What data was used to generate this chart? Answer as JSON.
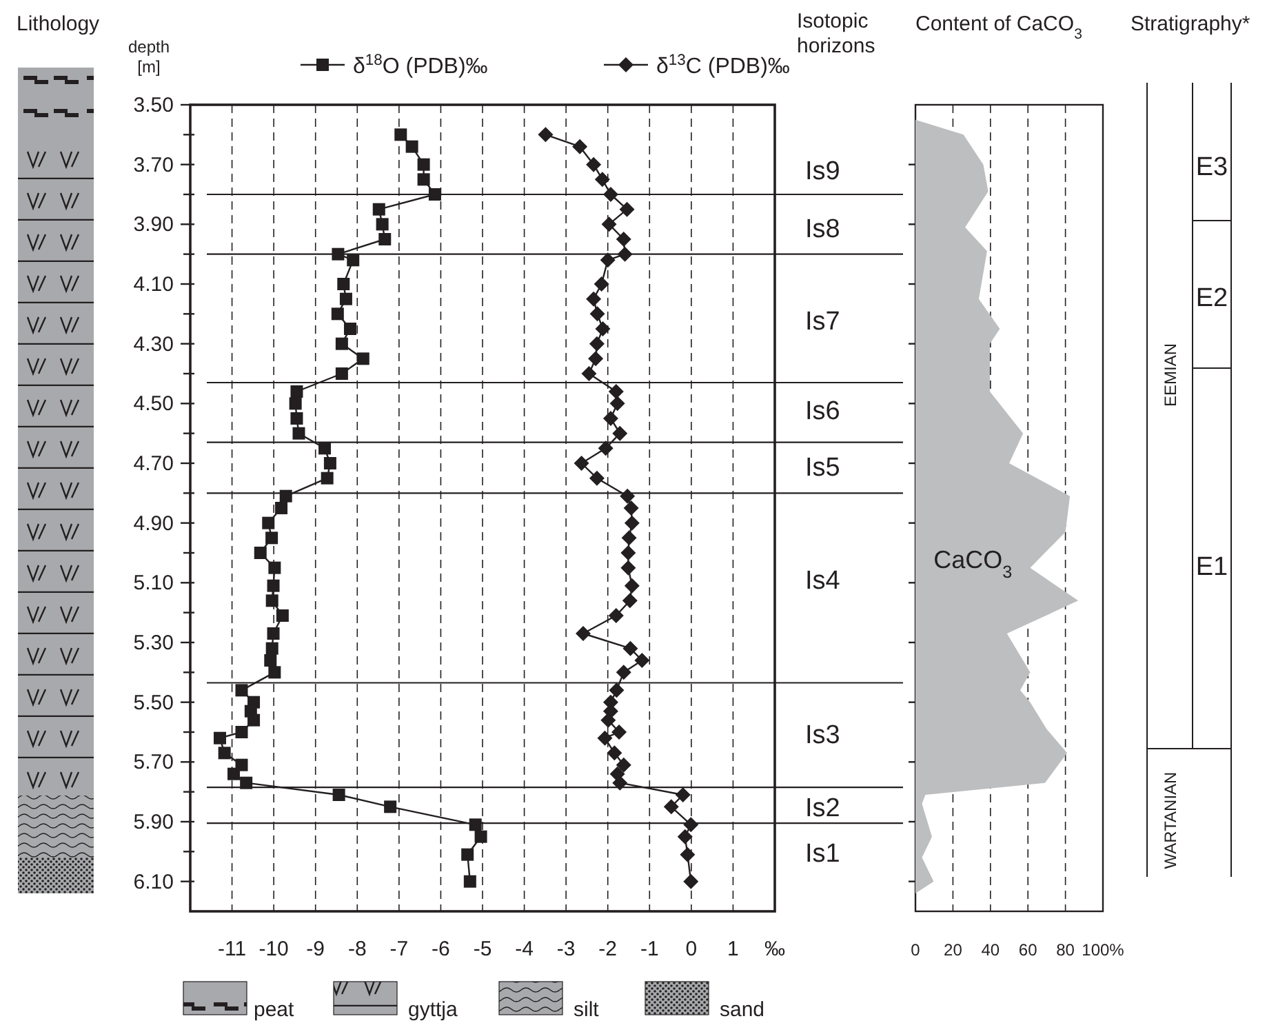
{
  "chart_data": [
    {
      "type": "other",
      "title": "Lithology",
      "annotations": [
        "peat",
        "gyttja",
        "silt",
        "sand"
      ]
    },
    {
      "type": "line",
      "orientation": "horizontal",
      "ylabel": "depth [m]",
      "legend": "top",
      "grid": "x",
      "annotations": [
        "Isotopic horizons",
        "Is9",
        "Is8",
        "Is7",
        "Is6",
        "Is5",
        "Is4",
        "Is3",
        "Is2",
        "Is1"
      ],
      "xlim": [
        -12,
        2
      ],
      "xticks": [
        -11,
        -10,
        -9,
        -8,
        -7,
        -6,
        -5,
        -4,
        -3,
        -2,
        -1,
        0,
        1,
        {
          "value": 2,
          "label": "‰"
        }
      ],
      "ylim": [
        6.2,
        3.5
      ],
      "yticks": [
        {
          "value": 3.5,
          "label": "3.50"
        },
        {
          "value": 3.6,
          "label": null
        },
        {
          "value": 3.7,
          "label": "3.70"
        },
        {
          "value": 3.8,
          "label": null
        },
        {
          "value": 3.9,
          "label": "3.90"
        },
        {
          "value": 4.0,
          "label": null
        },
        {
          "value": 4.1,
          "label": "4.10"
        },
        {
          "value": 4.2,
          "label": null
        },
        {
          "value": 4.3,
          "label": "4.30"
        },
        {
          "value": 4.4,
          "label": null
        },
        {
          "value": 4.5,
          "label": "4.50"
        },
        {
          "value": 4.6,
          "label": null
        },
        {
          "value": 4.7,
          "label": "4.70"
        },
        {
          "value": 4.8,
          "label": null
        },
        {
          "value": 4.9,
          "label": "4.90"
        },
        {
          "value": 5.0,
          "label": null
        },
        {
          "value": 5.1,
          "label": "5.10"
        },
        {
          "value": 5.2,
          "label": null
        },
        {
          "value": 5.3,
          "label": "5.30"
        },
        {
          "value": 5.4,
          "label": null
        },
        {
          "value": 5.5,
          "label": "5.50"
        },
        {
          "value": 5.6,
          "label": null
        },
        {
          "value": 5.7,
          "label": "5.70"
        },
        {
          "value": 5.8,
          "label": null
        },
        {
          "value": 5.9,
          "label": "5.90"
        },
        {
          "value": 6.0,
          "label": null
        },
        {
          "value": 6.1,
          "label": "6.10"
        }
      ],
      "x": [
        3.6,
        3.64,
        3.7,
        3.75,
        3.8,
        3.85,
        3.9,
        3.95,
        4.0,
        4.02,
        4.1,
        4.15,
        4.2,
        4.25,
        4.3,
        4.35,
        4.4,
        4.46,
        4.5,
        4.55,
        4.6,
        4.65,
        4.7,
        4.75,
        4.81,
        4.85,
        4.9,
        4.95,
        5.0,
        5.05,
        5.11,
        5.16,
        5.21,
        5.27,
        5.32,
        5.36,
        5.4,
        5.46,
        5.5,
        5.53,
        5.56,
        5.6,
        5.62,
        5.67,
        5.71,
        5.74,
        5.77,
        5.81,
        5.85,
        5.91,
        5.95,
        6.01,
        6.1
      ],
      "series": [
        {
          "name": "δ$^{18}$O (PDB)‰",
          "color": "#231f20",
          "marker": "square",
          "values": [
            -6.96,
            -6.69,
            -6.41,
            -6.41,
            -6.14,
            -7.48,
            -7.4,
            -7.34,
            -8.46,
            -8.1,
            -8.33,
            -8.27,
            -8.47,
            -8.17,
            -8.37,
            -7.86,
            -8.37,
            -9.45,
            -9.48,
            -9.45,
            -9.4,
            -8.78,
            -8.65,
            -8.72,
            -9.71,
            -9.82,
            -10.13,
            -10.05,
            -10.32,
            -9.98,
            -10.01,
            -10.04,
            -9.79,
            -10.01,
            -10.04,
            -10.08,
            -9.98,
            -10.77,
            -10.48,
            -10.55,
            -10.48,
            -10.77,
            -11.29,
            -11.18,
            -10.77,
            -10.96,
            -10.66,
            -8.44,
            -7.21,
            -5.17,
            -5.04,
            -5.36,
            -5.3
          ]
        },
        {
          "name": "δ$^{13}$C (PDB)‰",
          "color": "#231f20",
          "marker": "diamond",
          "values": [
            -3.49,
            -2.67,
            -2.34,
            -2.13,
            -1.93,
            -1.54,
            -1.97,
            -1.62,
            -1.59,
            -2.0,
            -2.15,
            -2.34,
            -2.25,
            -2.12,
            -2.26,
            -2.29,
            -2.45,
            -1.8,
            -1.77,
            -1.93,
            -1.71,
            -2.05,
            -2.63,
            -2.26,
            -1.53,
            -1.44,
            -1.42,
            -1.49,
            -1.51,
            -1.51,
            -1.42,
            -1.47,
            -1.8,
            -2.59,
            -1.46,
            -1.18,
            -1.62,
            -1.79,
            -1.93,
            -1.93,
            -1.99,
            -1.73,
            -2.07,
            -1.84,
            -1.62,
            -1.77,
            -1.71,
            -0.2,
            -0.48,
            -0.01,
            -0.15,
            -0.09,
            -0.01
          ]
        }
      ],
      "ref_lines": [
        {
          "axis": "y",
          "value": 3.8
        },
        {
          "axis": "y",
          "value": 4.0
        },
        {
          "axis": "y",
          "value": 4.43
        },
        {
          "axis": "y",
          "value": 4.63
        },
        {
          "axis": "y",
          "value": 4.8
        },
        {
          "axis": "y",
          "value": 5.435
        },
        {
          "axis": "y",
          "value": 5.785
        },
        {
          "axis": "y",
          "value": 5.905
        }
      ]
    },
    {
      "type": "area",
      "orientation": "horizontal",
      "title": "Content of CaCO$_{3}$",
      "grid": "x",
      "tick_labels": "x",
      "xlim": [
        0,
        100
      ],
      "xticks": [
        0,
        20,
        40,
        60,
        80,
        {
          "value": 100,
          "label": "100%"
        }
      ],
      "ylim": [
        6.2,
        3.5
      ],
      "yticks": [
        {
          "value": 3.7,
          "label": null
        },
        {
          "value": 3.9,
          "label": null
        },
        {
          "value": 4.1,
          "label": null
        },
        {
          "value": 4.3,
          "label": null
        },
        {
          "value": 4.5,
          "label": null
        },
        {
          "value": 4.7,
          "label": null
        },
        {
          "value": 4.9,
          "label": null
        },
        {
          "value": 5.1,
          "label": null
        },
        {
          "value": 5.3,
          "label": null
        },
        {
          "value": 5.5,
          "label": null
        },
        {
          "value": 5.7,
          "label": null
        },
        {
          "value": 5.9,
          "label": null
        },
        {
          "value": 6.1,
          "label": null
        }
      ],
      "series": [
        {
          "name": "CaCO$_{3}$",
          "color": "#bcbec0",
          "x": [
            3.55,
            3.6,
            3.7,
            3.79,
            3.91,
            3.99,
            4.15,
            4.25,
            4.3,
            4.46,
            4.6,
            4.7,
            4.81,
            4.93,
            5.05,
            5.16,
            5.27,
            5.4,
            5.46,
            5.5,
            5.59,
            5.67,
            5.77,
            5.81,
            5.84,
            5.95,
            6.02,
            6.1,
            6.14
          ],
          "values": [
            0,
            25.6,
            36.2,
            38.8,
            26.5,
            38.2,
            33.8,
            45,
            39.7,
            39.7,
            57.4,
            50,
            82.4,
            80,
            61.2,
            86.8,
            48.8,
            61.2,
            55.9,
            61.2,
            70,
            80.9,
            69.1,
            5.3,
            3.5,
            8.8,
            3.5,
            9.7,
            0
          ]
        }
      ]
    },
    {
      "type": "other",
      "title": "Stratigraphy*",
      "annotations": [
        "EEMIAN",
        "WARTANIAN",
        "E3",
        "E2",
        "E1"
      ]
    }
  ]
}
